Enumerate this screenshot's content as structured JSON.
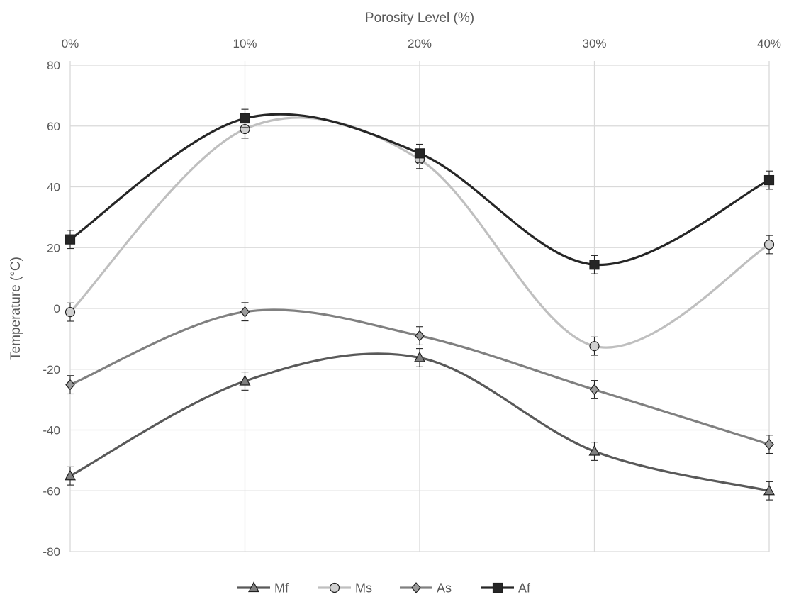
{
  "chart_data": {
    "type": "line",
    "title": "",
    "xlabel": "Porosity Level (%)",
    "ylabel": "Temperature (°C)",
    "categories": [
      "0%",
      "10%",
      "20%",
      "30%",
      "40%"
    ],
    "ylim": [
      -80,
      80
    ],
    "yticks": [
      80,
      60,
      40,
      20,
      0,
      -20,
      -40,
      -60,
      -80
    ],
    "grid": true,
    "smooth": true,
    "x_axis_position": "top",
    "legend_position": "bottom",
    "error_bar": 3,
    "series": [
      {
        "name": "Mf",
        "marker": "triangle",
        "color": "#595959",
        "values": [
          -55.1,
          -23.9,
          -16.2,
          -47.0,
          -60.0
        ]
      },
      {
        "name": "Ms",
        "marker": "circle",
        "color": "#bfbfbf",
        "values": [
          -1.2,
          59.0,
          49.0,
          -12.4,
          21.0
        ]
      },
      {
        "name": "As",
        "marker": "diamond",
        "color": "#808080",
        "values": [
          -25.1,
          -1.1,
          -9.0,
          -26.7,
          -44.7
        ]
      },
      {
        "name": "Af",
        "marker": "square",
        "color": "#262626",
        "values": [
          22.7,
          62.5,
          51.0,
          14.4,
          42.2
        ]
      }
    ]
  }
}
